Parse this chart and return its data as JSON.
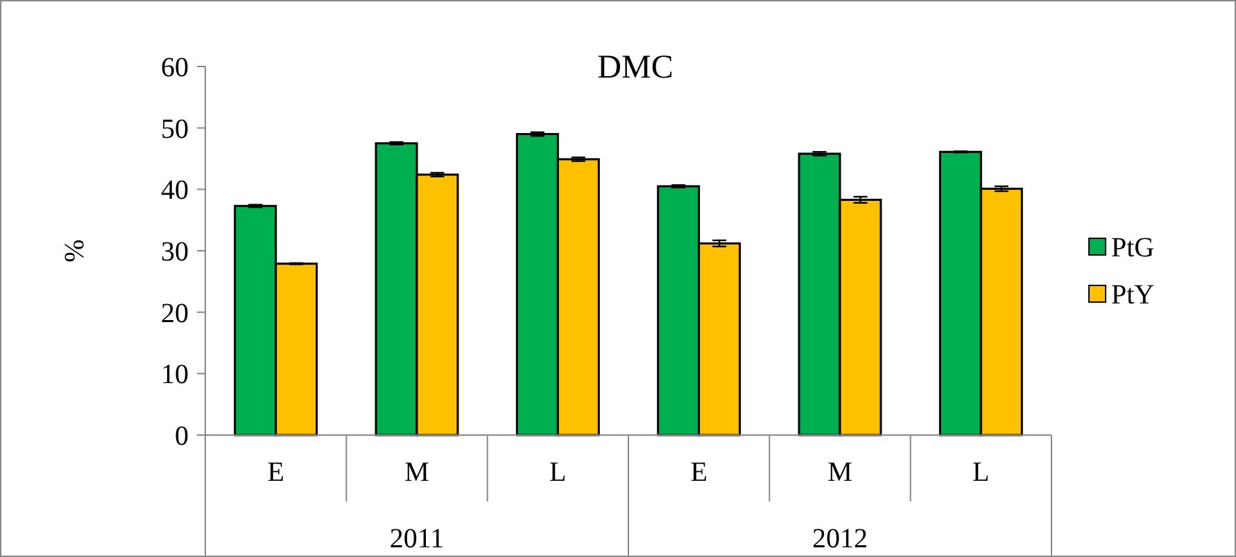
{
  "chart_data": {
    "type": "bar",
    "title": "DMC",
    "ylabel": "%",
    "categories": [
      "E",
      "M",
      "L",
      "E",
      "M",
      "L"
    ],
    "annotations": [
      "2011",
      "2012"
    ],
    "series": [
      {
        "name": "PtG",
        "color": "#00b050",
        "values": [
          37.3,
          47.5,
          49.0,
          40.5,
          45.8,
          46.1
        ],
        "errors": [
          0.2,
          0.2,
          0.3,
          0.2,
          0.3,
          0.1
        ]
      },
      {
        "name": "PtY",
        "color": "#ffc000",
        "values": [
          27.9,
          42.4,
          44.9,
          31.2,
          38.3,
          40.1
        ],
        "errors": [
          0.1,
          0.3,
          0.3,
          0.5,
          0.5,
          0.4
        ]
      }
    ],
    "ylim": [
      0,
      60
    ],
    "yticks": [
      0,
      10,
      20,
      30,
      40,
      50,
      60
    ],
    "legend": "right",
    "grid": false
  }
}
